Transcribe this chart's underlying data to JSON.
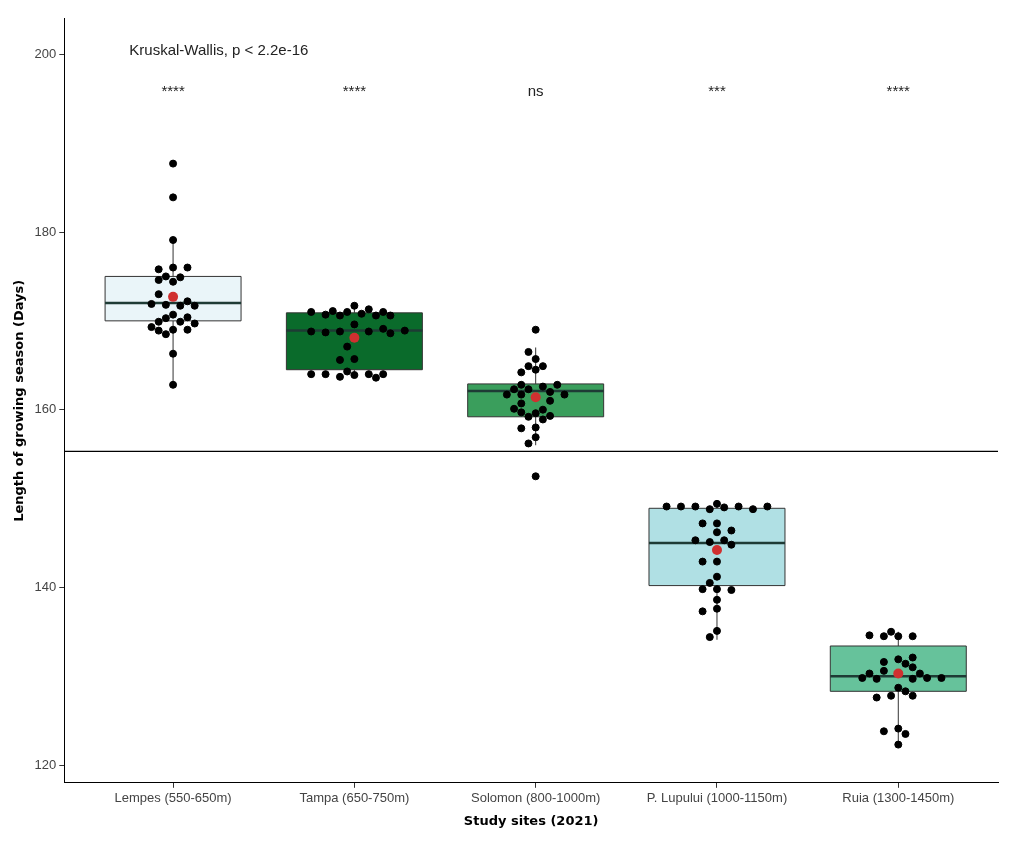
{
  "chart_data": {
    "type": "box",
    "xlabel": "Study sites (2021)",
    "ylabel": "Length of growing season (Days)",
    "categories": [
      "Lempes (550-650m)",
      "Tampa (650-750m)",
      "Solomon (800-1000m)",
      "P. Lupului (1000-1150m)",
      "Ruia (1300-1450m)"
    ],
    "colors": [
      "#eaf5f9",
      "#0a6b2b",
      "#3a9e5c",
      "#b0e0e4",
      "#66c29b"
    ],
    "boxes": [
      {
        "low": 163,
        "q1": 170,
        "median": 172,
        "q3": 175,
        "high": 179.1,
        "mean": 172.7
      },
      {
        "low": 163.6,
        "q1": 164.5,
        "median": 168.9,
        "q3": 170.9,
        "high": 171.8,
        "mean": 168.1
      },
      {
        "low": 156,
        "q1": 159.2,
        "median": 162.1,
        "q3": 162.9,
        "high": 167,
        "mean": 161.4
      },
      {
        "low": 134.1,
        "q1": 140.2,
        "median": 145,
        "q3": 148.9,
        "high": 149.3,
        "mean": 144.2
      },
      {
        "low": 122.1,
        "q1": 128.3,
        "median": 130,
        "q3": 133.4,
        "high": 135,
        "mean": 130.3
      }
    ],
    "series": [
      {
        "type": "scatter",
        "color": "#000000",
        "x": [
          "Lempes (550-650m)",
          "Lempes (550-650m)",
          "Lempes (550-650m)",
          "Lempes (550-650m)",
          "Lempes (550-650m)",
          "Lempes (550-650m)",
          "Lempes (550-650m)",
          "Lempes (550-650m)",
          "Lempes (550-650m)",
          "Lempes (550-650m)",
          "Lempes (550-650m)",
          "Lempes (550-650m)",
          "Lempes (550-650m)",
          "Lempes (550-650m)",
          "Lempes (550-650m)",
          "Lempes (550-650m)",
          "Lempes (550-650m)",
          "Lempes (550-650m)",
          "Lempes (550-650m)",
          "Lempes (550-650m)",
          "Lempes (550-650m)",
          "Lempes (550-650m)",
          "Lempes (550-650m)",
          "Lempes (550-650m)",
          "Lempes (550-650m)",
          "Lempes (550-650m)",
          "Lempes (550-650m)",
          "Lempes (550-650m)",
          "Lempes (550-650m)",
          "Tampa (650-750m)",
          "Tampa (650-750m)",
          "Tampa (650-750m)",
          "Tampa (650-750m)",
          "Tampa (650-750m)",
          "Tampa (650-750m)",
          "Tampa (650-750m)",
          "Tampa (650-750m)",
          "Tampa (650-750m)",
          "Tampa (650-750m)",
          "Tampa (650-750m)",
          "Tampa (650-750m)",
          "Tampa (650-750m)",
          "Tampa (650-750m)",
          "Tampa (650-750m)",
          "Tampa (650-750m)",
          "Tampa (650-750m)",
          "Tampa (650-750m)",
          "Tampa (650-750m)",
          "Tampa (650-750m)",
          "Tampa (650-750m)",
          "Tampa (650-750m)",
          "Tampa (650-750m)",
          "Tampa (650-750m)",
          "Tampa (650-750m)",
          "Tampa (650-750m)",
          "Tampa (650-750m)",
          "Tampa (650-750m)",
          "Tampa (650-750m)",
          "Tampa (650-750m)",
          "Solomon (800-1000m)",
          "Solomon (800-1000m)",
          "Solomon (800-1000m)",
          "Solomon (800-1000m)",
          "Solomon (800-1000m)",
          "Solomon (800-1000m)",
          "Solomon (800-1000m)",
          "Solomon (800-1000m)",
          "Solomon (800-1000m)",
          "Solomon (800-1000m)",
          "Solomon (800-1000m)",
          "Solomon (800-1000m)",
          "Solomon (800-1000m)",
          "Solomon (800-1000m)",
          "Solomon (800-1000m)",
          "Solomon (800-1000m)",
          "Solomon (800-1000m)",
          "Solomon (800-1000m)",
          "Solomon (800-1000m)",
          "Solomon (800-1000m)",
          "Solomon (800-1000m)",
          "Solomon (800-1000m)",
          "Solomon (800-1000m)",
          "Solomon (800-1000m)",
          "Solomon (800-1000m)",
          "Solomon (800-1000m)",
          "Solomon (800-1000m)",
          "Solomon (800-1000m)",
          "Solomon (800-1000m)",
          "Solomon (800-1000m)",
          "P. Lupului (1000-1150m)",
          "P. Lupului (1000-1150m)",
          "P. Lupului (1000-1150m)",
          "P. Lupului (1000-1150m)",
          "P. Lupului (1000-1150m)",
          "P. Lupului (1000-1150m)",
          "P. Lupului (1000-1150m)",
          "P. Lupului (1000-1150m)",
          "P. Lupului (1000-1150m)",
          "P. Lupului (1000-1150m)",
          "P. Lupului (1000-1150m)",
          "P. Lupului (1000-1150m)",
          "P. Lupului (1000-1150m)",
          "P. Lupului (1000-1150m)",
          "P. Lupului (1000-1150m)",
          "P. Lupului (1000-1150m)",
          "P. Lupului (1000-1150m)",
          "P. Lupului (1000-1150m)",
          "P. Lupului (1000-1150m)",
          "P. Lupului (1000-1150m)",
          "P. Lupului (1000-1150m)",
          "P. Lupului (1000-1150m)",
          "P. Lupului (1000-1150m)",
          "P. Lupului (1000-1150m)",
          "P. Lupului (1000-1150m)",
          "P. Lupului (1000-1150m)",
          "P. Lupului (1000-1150m)",
          "P. Lupului (1000-1150m)",
          "P. Lupului (1000-1150m)",
          "Ruia (1300-1450m)",
          "Ruia (1300-1450m)",
          "Ruia (1300-1450m)",
          "Ruia (1300-1450m)",
          "Ruia (1300-1450m)",
          "Ruia (1300-1450m)",
          "Ruia (1300-1450m)",
          "Ruia (1300-1450m)",
          "Ruia (1300-1450m)",
          "Ruia (1300-1450m)",
          "Ruia (1300-1450m)",
          "Ruia (1300-1450m)",
          "Ruia (1300-1450m)",
          "Ruia (1300-1450m)",
          "Ruia (1300-1450m)",
          "Ruia (1300-1450m)",
          "Ruia (1300-1450m)",
          "Ruia (1300-1450m)",
          "Ruia (1300-1450m)",
          "Ruia (1300-1450m)",
          "Ruia (1300-1450m)",
          "Ruia (1300-1450m)",
          "Ruia (1300-1450m)",
          "Ruia (1300-1450m)",
          "Ruia (1300-1450m)",
          "Ruia (1300-1450m)",
          "Ruia (1300-1450m)"
        ],
        "values": [
          187.7,
          183.9,
          179.1,
          176,
          175.8,
          176,
          174.4,
          174.6,
          174.9,
          175,
          173,
          172.2,
          171.8,
          171.7,
          171.9,
          171.7,
          170.7,
          170.3,
          169.9,
          169.9,
          169.7,
          170.4,
          169,
          168.9,
          169,
          169.3,
          168.5,
          166.3,
          162.8,
          171.7,
          171,
          170.8,
          170.6,
          171.1,
          170.6,
          171.3,
          170.7,
          171,
          171,
          170.6,
          169.6,
          168.8,
          168.8,
          168.7,
          169.1,
          168.8,
          168.6,
          168.9,
          167.1,
          165.7,
          165.6,
          163.9,
          163.7,
          164,
          164.3,
          163.6,
          164,
          164,
          164,
          169,
          165.7,
          166.5,
          164.9,
          164.5,
          164.2,
          164.9,
          159.6,
          159.7,
          161.7,
          160.7,
          162.3,
          159.2,
          161,
          162,
          161.7,
          162.3,
          158.9,
          161.7,
          160,
          162.6,
          160.1,
          162.8,
          162.8,
          159.3,
          158,
          157.9,
          156.9,
          156.2,
          152.5,
          149.4,
          148.8,
          149,
          149.1,
          149.1,
          149.1,
          148.8,
          149.1,
          149.1,
          147.2,
          147.2,
          146.2,
          146.4,
          145.1,
          145.3,
          145.3,
          144.8,
          142.9,
          142.9,
          141.2,
          140.5,
          139.8,
          139.8,
          139.7,
          138.6,
          137.6,
          137.3,
          135.1,
          134.4,
          134.5,
          134.5,
          134.5,
          134.6,
          135,
          131.9,
          131.6,
          131.4,
          131,
          132.1,
          130.6,
          130.3,
          129.7,
          129.7,
          129.8,
          129.8,
          129.8,
          130.3,
          128.7,
          127.8,
          128.3,
          127.8,
          127.6,
          124.1,
          123.8,
          123.5,
          122.3
        ]
      }
    ],
    "ylim": [
      118,
      204
    ],
    "yticks": [
      120,
      140,
      160,
      180,
      200
    ],
    "grid": false,
    "legend": false,
    "ref_lines": [
      {
        "axis": "y",
        "value": 155.3,
        "color": "#000000"
      }
    ],
    "annotations": [
      "Kruskal-Wallis, p < 2.2e-16",
      "****",
      "****",
      "ns",
      "***",
      "****"
    ]
  }
}
